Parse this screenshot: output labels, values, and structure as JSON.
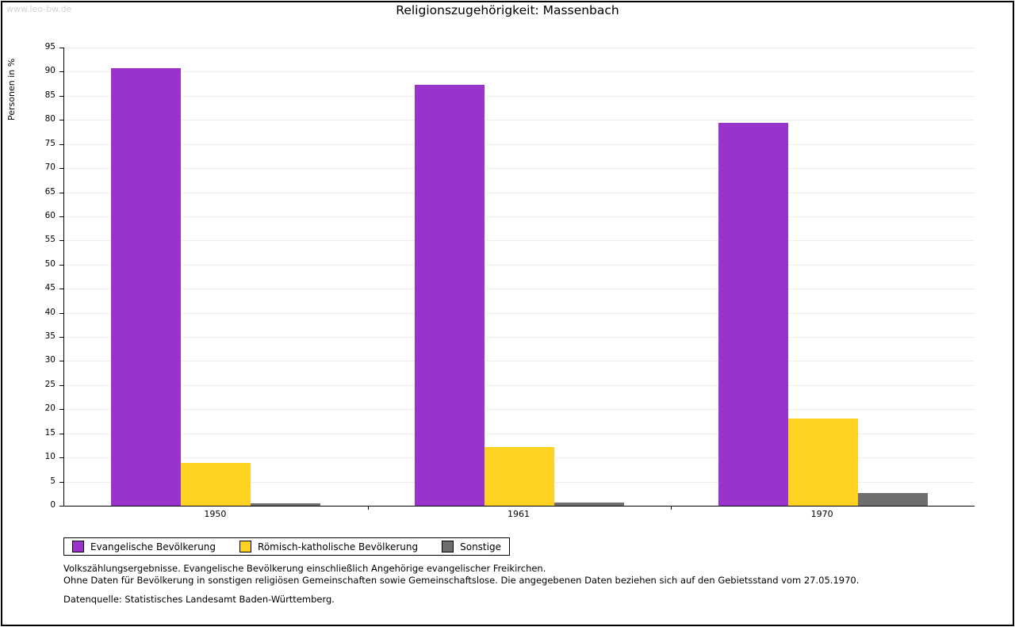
{
  "watermark": "www.leo-bw.de",
  "title": "Religionszugehörigkeit: Massenbach",
  "chart_data": {
    "type": "bar",
    "categories": [
      "1950",
      "1961",
      "1970"
    ],
    "series": [
      {
        "name": "Evangelische Bevölkerung",
        "color": "#9933cc",
        "values": [
          90.7,
          87.2,
          79.4
        ]
      },
      {
        "name": "Römisch-katholische Bevölkerung",
        "color": "#fdd220",
        "values": [
          8.9,
          12.1,
          18.1
        ]
      },
      {
        "name": "Sonstige",
        "color": "#6e6e6e",
        "values": [
          0.5,
          0.7,
          2.6
        ]
      }
    ],
    "title": "Religionszugehörigkeit: Massenbach",
    "xlabel": "",
    "ylabel": "Personen in %",
    "ylim": [
      0,
      95
    ],
    "ytick_step": 5,
    "grid": "horizontal-dotted",
    "legend_position": "bottom-left"
  },
  "footnotes": [
    "Volkszählungsergebnisse. Evangelische Bevölkerung einschließlich Angehörige evangelischer Freikirchen.",
    "Ohne Daten für Bevölkerung in sonstigen religiösen Gemeinschaften sowie Gemeinschaftslose. Die angegebenen Daten beziehen sich auf den Gebietsstand vom 27.05.1970.",
    "Datenquelle: Statistisches Landesamt Baden-Württemberg."
  ]
}
